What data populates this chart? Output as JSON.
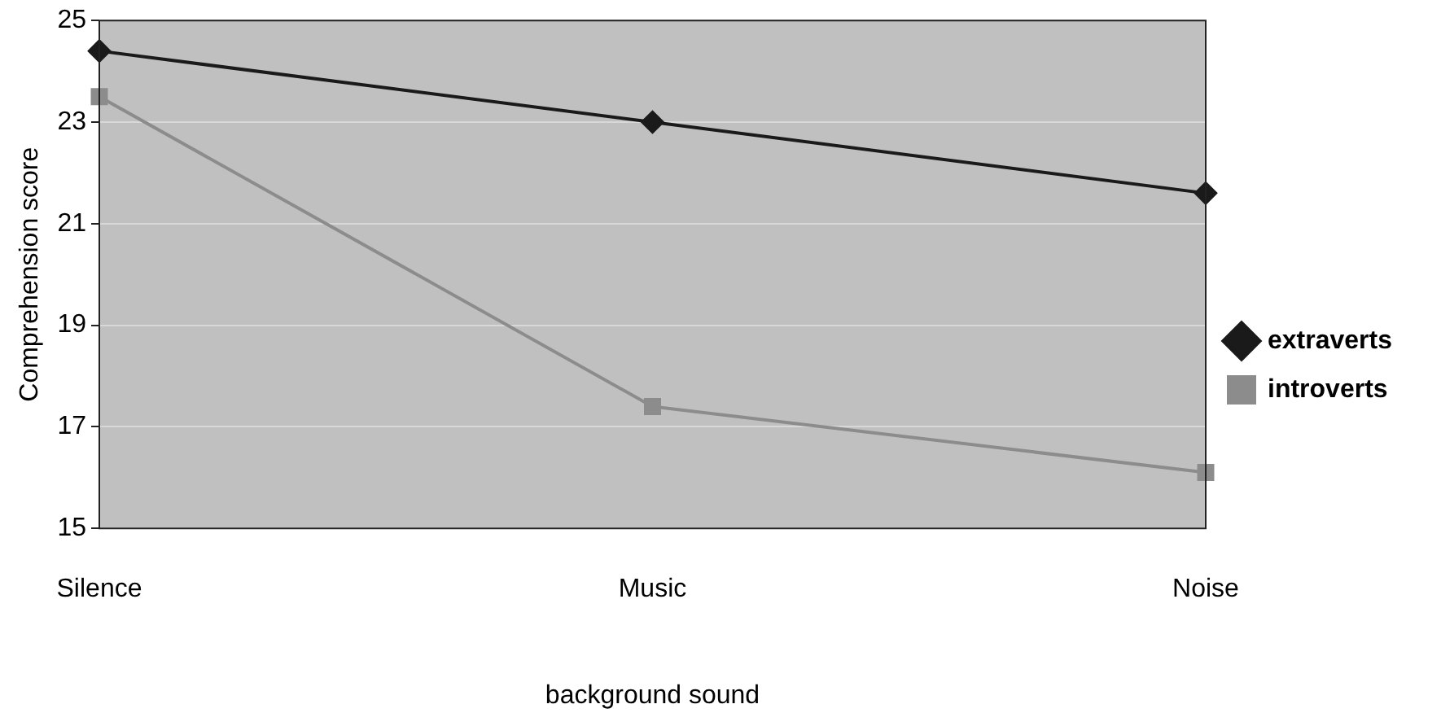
{
  "chart_data": {
    "type": "line",
    "xlabel": "background sound",
    "ylabel": "Comprehension score",
    "categories": [
      "Silence",
      "Music",
      "Noise"
    ],
    "series": [
      {
        "name": "extraverts",
        "color": "#1a1a1a",
        "values": [
          24.4,
          23.0,
          21.6
        ],
        "marker": "diamond"
      },
      {
        "name": "introverts",
        "color": "#8c8c8c",
        "values": [
          23.5,
          17.4,
          16.1
        ],
        "marker": "square"
      }
    ],
    "ylim": [
      15,
      25
    ],
    "yticks": [
      15,
      17,
      19,
      21,
      23,
      25
    ],
    "grid": "y",
    "legend": "right",
    "line_style": "solid"
  }
}
